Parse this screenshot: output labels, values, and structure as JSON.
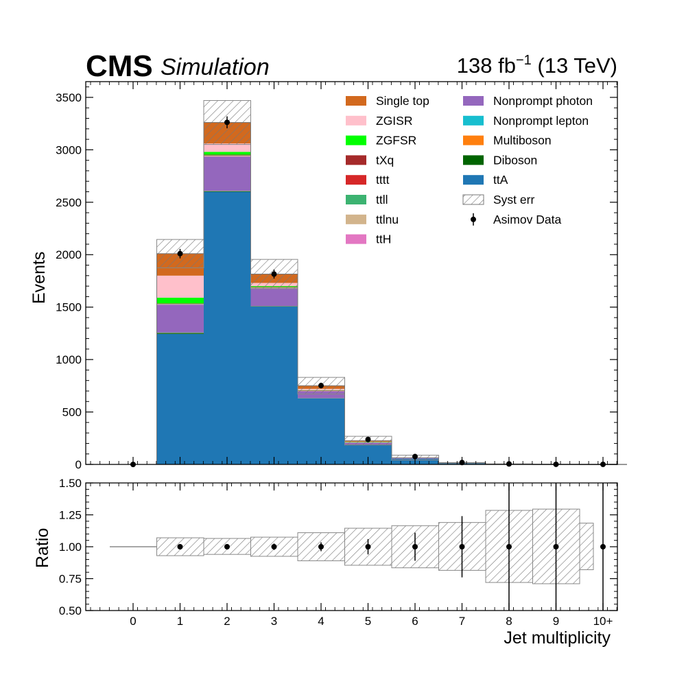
{
  "header": {
    "experiment": "CMS",
    "status": "Simulation",
    "lumi": "138 fb",
    "lumi_sup": "−1",
    "energy": "(13 TeV)"
  },
  "chart_data": [
    {
      "type": "bar",
      "subtype": "stacked-histogram",
      "panel": "main",
      "ylabel": "Events",
      "ylim": [
        0,
        3650
      ],
      "yticks": [
        "0",
        "500",
        "1000",
        "1500",
        "2000",
        "2500",
        "3000",
        "3500"
      ],
      "categories": [
        "0",
        "1",
        "2",
        "3",
        "4",
        "5",
        "6",
        "7",
        "8",
        "9",
        "10+"
      ],
      "series": [
        {
          "name": "ttA",
          "color": "#1f77b4",
          "values": [
            0,
            1245,
            2600,
            1505,
            630,
            190,
            55,
            12,
            3,
            1,
            0.5
          ]
        },
        {
          "name": "Diboson",
          "color": "#006400",
          "values": [
            0,
            8,
            5,
            3,
            1,
            0.5,
            0,
            0,
            0,
            0,
            0
          ]
        },
        {
          "name": "Multiboson",
          "color": "#ff7f0e",
          "values": [
            0,
            2,
            2,
            1,
            0.5,
            0,
            0,
            0,
            0,
            0,
            0
          ]
        },
        {
          "name": "Nonprompt lepton",
          "color": "#17becf",
          "values": [
            0,
            3,
            2,
            1,
            0.5,
            0,
            0,
            0,
            0,
            0,
            0
          ]
        },
        {
          "name": "Nonprompt photon",
          "color": "#9467bd",
          "values": [
            0,
            265,
            325,
            168,
            65,
            18,
            6,
            2,
            0.5,
            0,
            0
          ]
        },
        {
          "name": "ttH",
          "color": "#e377c2",
          "values": [
            0,
            2,
            4,
            3,
            2,
            1,
            0,
            0,
            0,
            0,
            0
          ]
        },
        {
          "name": "ttlnu",
          "color": "#d2b48c",
          "values": [
            0,
            3,
            6,
            4,
            3,
            1,
            0,
            0,
            0,
            0,
            0
          ]
        },
        {
          "name": "ttll",
          "color": "#3cb371",
          "values": [
            0,
            3,
            6,
            5,
            3,
            1,
            0,
            0,
            0,
            0,
            0
          ]
        },
        {
          "name": "tttt",
          "color": "#d62728",
          "values": [
            0,
            0,
            0.5,
            0.5,
            0.5,
            0,
            0,
            0,
            0,
            0,
            0
          ]
        },
        {
          "name": "tXq",
          "color": "#a52a2a",
          "values": [
            0,
            4,
            3,
            2,
            1,
            0,
            0,
            0,
            0,
            0,
            0
          ]
        },
        {
          "name": "ZGFSR",
          "color": "#00ff00",
          "values": [
            0,
            55,
            27,
            8,
            2,
            1,
            0,
            0,
            0,
            0,
            0
          ]
        },
        {
          "name": "ZGISR",
          "color": "#ffc0cb",
          "values": [
            0,
            210,
            80,
            30,
            12,
            4,
            1,
            0,
            0,
            0,
            0
          ]
        },
        {
          "name": "Single top",
          "color": "#d2691e",
          "values": [
            0,
            210,
            200,
            85,
            30,
            10,
            3,
            1,
            0,
            0,
            0
          ]
        }
      ],
      "syst_err": {
        "name": "Syst err",
        "up": [
          0,
          2145,
          3470,
          1955,
          830,
          268,
          88,
          18,
          5,
          2,
          1
        ]
      },
      "data": {
        "name": "Asimov Data",
        "values": [
          0,
          2010,
          3262,
          1815,
          752,
          238,
          75,
          18,
          5,
          1,
          0.5
        ],
        "errors": [
          0,
          45,
          57,
          43,
          27,
          15,
          9,
          4,
          2,
          1,
          1
        ]
      },
      "legend": "top-right, two columns"
    },
    {
      "type": "bar",
      "subtype": "ratio",
      "panel": "ratio",
      "xlabel": "Jet multiplicity",
      "ylabel": "Ratio",
      "ylim": [
        0.5,
        1.5
      ],
      "yticks": [
        "0.50",
        "0.75",
        "1.00",
        "1.25",
        "1.50"
      ],
      "xticks": [
        "0",
        "1",
        "2",
        "3",
        "4",
        "5",
        "6",
        "7",
        "8",
        "9",
        "10+"
      ],
      "band": {
        "low": [
          1.0,
          0.93,
          0.94,
          0.925,
          0.89,
          0.855,
          0.835,
          0.815,
          0.72,
          0.71,
          0.82
        ],
        "high": [
          1.0,
          1.07,
          1.065,
          1.075,
          1.11,
          1.145,
          1.165,
          1.19,
          1.285,
          1.295,
          1.185
        ]
      },
      "points": {
        "values": [
          1,
          1,
          1,
          1,
          1,
          1,
          1,
          1,
          1,
          1
        ],
        "x": [
          "1",
          "2",
          "3",
          "4",
          "5",
          "6",
          "7",
          "8",
          "9",
          "10+"
        ],
        "errors": [
          0.02,
          0.02,
          0.025,
          0.035,
          0.06,
          0.11,
          0.24,
          0.55,
          1.2,
          1.8
        ]
      }
    }
  ]
}
